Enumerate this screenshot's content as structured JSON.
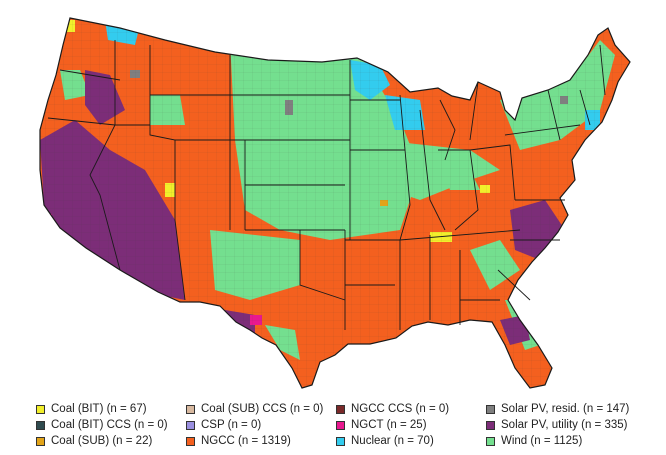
{
  "legend": {
    "items": [
      {
        "id": "coal_bit",
        "label": "Coal (BIT) (n = 67)",
        "color": "#f2ef2b"
      },
      {
        "id": "coal_bit_ccs",
        "label": "Coal (BIT) CCS (n = 0)",
        "color": "#2f4b4f"
      },
      {
        "id": "coal_sub",
        "label": "Coal (SUB) (n = 22)",
        "color": "#e2a419"
      },
      {
        "id": "coal_sub_ccs",
        "label": "Coal (SUB) CCS (n = 0)",
        "color": "#d8b9a0"
      },
      {
        "id": "csp",
        "label": "CSP (n = 0)",
        "color": "#9a8fe0"
      },
      {
        "id": "ngcc",
        "label": "NGCC (n = 1319)",
        "color": "#f4601f"
      },
      {
        "id": "ngcc_ccs",
        "label": "NGCC CCS (n = 0)",
        "color": "#7a2a2a"
      },
      {
        "id": "ngct",
        "label": "NGCT (n = 25)",
        "color": "#e8188f"
      },
      {
        "id": "nuclear",
        "label": "Nuclear (n = 70)",
        "color": "#33ccee"
      },
      {
        "id": "solar_pv_resid",
        "label": "Solar PV, resid. (n = 147)",
        "color": "#7f7f7f"
      },
      {
        "id": "solar_pv_utility",
        "label": "Solar PV, utility (n = 335)",
        "color": "#7c2d78"
      },
      {
        "id": "wind",
        "label": "Wind (n = 1125)",
        "color": "#74df8f"
      }
    ]
  },
  "colors": {
    "background": "#ffffff",
    "border": "#1a1a1a"
  }
}
